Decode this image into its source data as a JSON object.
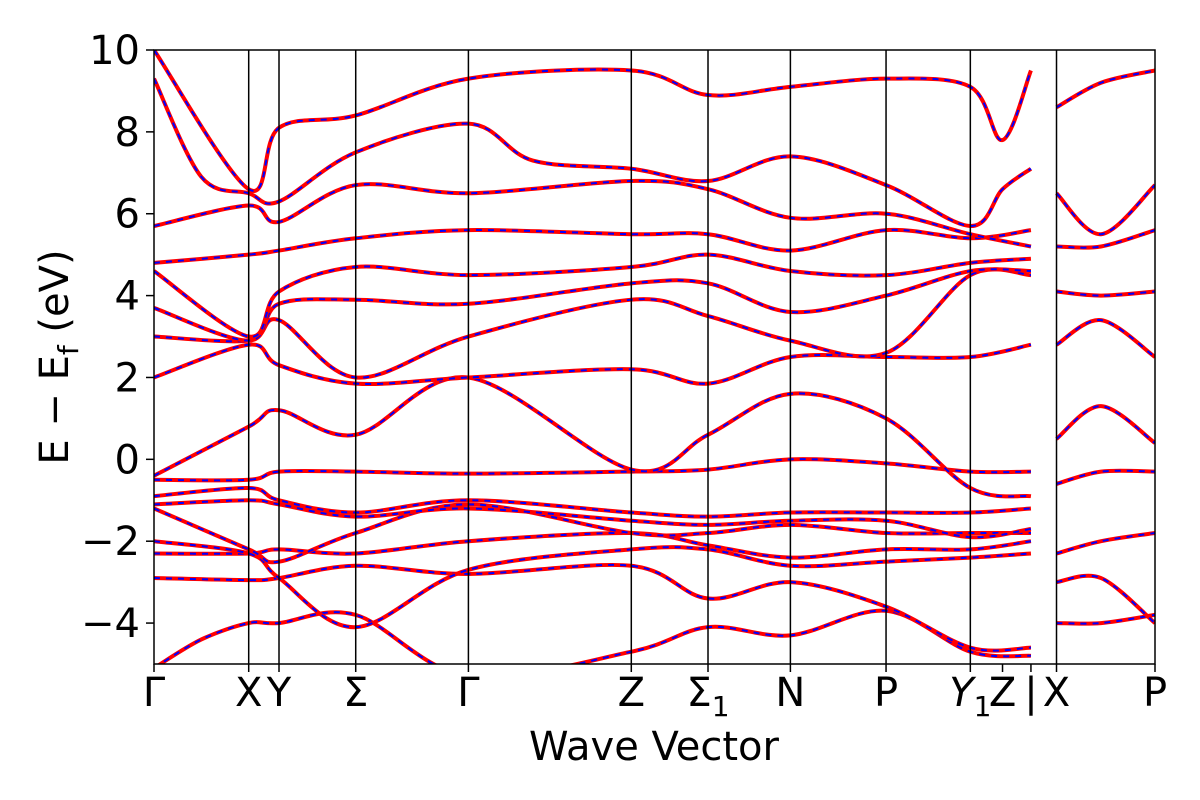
{
  "chart_data": {
    "type": "line",
    "title": "",
    "xlabel": "Wave Vector",
    "ylabel_main": "E − E",
    "ylabel_sub": "f",
    "ylabel_unit": " (eV)",
    "ylim": [
      -5,
      10
    ],
    "yticks": [
      {
        "value": -4,
        "label": "−4"
      },
      {
        "value": -2,
        "label": "−2"
      },
      {
        "value": 0,
        "label": "0"
      },
      {
        "value": 2,
        "label": "2"
      },
      {
        "value": 4,
        "label": "4"
      },
      {
        "value": 6,
        "label": "6"
      },
      {
        "value": 8,
        "label": "8"
      },
      {
        "value": 10,
        "label": "10"
      }
    ],
    "xlim": [
      0,
      10.57
    ],
    "kpoints": [
      {
        "pos": 0.0,
        "main": "Γ",
        "sub": "",
        "italic": false
      },
      {
        "pos": 1.0,
        "main": "X",
        "sub": "",
        "italic": false
      },
      {
        "pos": 1.32,
        "main": "Y",
        "sub": "",
        "italic": false
      },
      {
        "pos": 2.13,
        "main": "Σ",
        "sub": "",
        "italic": false
      },
      {
        "pos": 3.32,
        "main": "Γ",
        "sub": "",
        "italic": false
      },
      {
        "pos": 5.04,
        "main": "Z",
        "sub": "",
        "italic": false
      },
      {
        "pos": 5.85,
        "main": "Σ",
        "sub": "1",
        "italic": false
      },
      {
        "pos": 6.72,
        "main": "N",
        "sub": "",
        "italic": false
      },
      {
        "pos": 7.73,
        "main": "P",
        "sub": "",
        "italic": false
      },
      {
        "pos": 8.62,
        "main": "Y",
        "sub": "1",
        "italic": true
      },
      {
        "pos": 8.96,
        "main": "Z",
        "sub": "",
        "italic": false
      },
      {
        "pos": 9.26,
        "main": "|",
        "sub": "",
        "italic": false
      },
      {
        "pos": 9.53,
        "main": "X",
        "sub": "",
        "italic": false
      },
      {
        "pos": 10.57,
        "main": "P",
        "sub": "",
        "italic": false
      }
    ],
    "vlines": [
      1.0,
      1.32,
      2.13,
      3.32,
      5.04,
      5.85,
      6.72,
      7.73,
      8.62,
      9.53
    ],
    "series_styles": [
      {
        "color": "#ff0000",
        "dashed": false
      },
      {
        "color": "#0000ff",
        "dashed": true
      }
    ],
    "bands": [
      [
        [
          0,
          -5.1
        ],
        [
          0.5,
          -4.4
        ],
        [
          1.0,
          -4.0
        ],
        [
          1.32,
          -4.0
        ],
        [
          2.13,
          -3.8
        ],
        [
          3.32,
          -5.3
        ],
        [
          5.04,
          -4.7
        ],
        [
          5.85,
          -4.1
        ],
        [
          6.72,
          -4.3
        ],
        [
          7.73,
          -3.7
        ],
        [
          8.62,
          -4.7
        ],
        [
          9.26,
          -4.8
        ]
      ],
      [
        [
          0,
          -2.9
        ],
        [
          1.0,
          -2.95
        ],
        [
          1.32,
          -2.9
        ],
        [
          2.13,
          -2.6
        ],
        [
          3.32,
          -2.8
        ],
        [
          5.04,
          -2.6
        ],
        [
          5.85,
          -3.4
        ],
        [
          6.72,
          -3.0
        ],
        [
          7.73,
          -3.6
        ],
        [
          8.62,
          -4.6
        ],
        [
          9.26,
          -4.6
        ]
      ],
      [
        [
          0,
          -2.3
        ],
        [
          1.0,
          -2.3
        ],
        [
          1.32,
          -2.2
        ],
        [
          2.13,
          -2.3
        ],
        [
          3.32,
          -2.0
        ],
        [
          5.04,
          -1.8
        ],
        [
          5.85,
          -2.1
        ],
        [
          6.72,
          -2.4
        ],
        [
          7.73,
          -2.2
        ],
        [
          8.62,
          -2.2
        ],
        [
          9.26,
          -2.0
        ]
      ],
      [
        [
          0,
          -2.0
        ],
        [
          1.0,
          -2.3
        ],
        [
          1.32,
          -2.9
        ],
        [
          2.13,
          -4.1
        ],
        [
          3.32,
          -2.7
        ],
        [
          5.04,
          -2.2
        ],
        [
          5.85,
          -2.2
        ],
        [
          6.72,
          -2.6
        ],
        [
          7.73,
          -2.5
        ],
        [
          8.62,
          -2.4
        ],
        [
          9.26,
          -2.3
        ]
      ],
      [
        [
          0,
          -1.2
        ],
        [
          1.0,
          -2.2
        ],
        [
          1.32,
          -2.5
        ],
        [
          2.13,
          -1.8
        ],
        [
          3.32,
          -1.1
        ],
        [
          5.04,
          -1.8
        ],
        [
          5.85,
          -1.8
        ],
        [
          6.72,
          -1.6
        ],
        [
          7.73,
          -1.8
        ],
        [
          8.62,
          -1.8
        ],
        [
          9.26,
          -1.8
        ]
      ],
      [
        [
          0,
          -1.1
        ],
        [
          1.0,
          -1.0
        ],
        [
          1.32,
          -1.1
        ],
        [
          2.13,
          -1.4
        ],
        [
          3.32,
          -1.2
        ],
        [
          5.04,
          -1.5
        ],
        [
          5.85,
          -1.6
        ],
        [
          6.72,
          -1.5
        ],
        [
          7.73,
          -1.5
        ],
        [
          8.62,
          -1.9
        ],
        [
          9.26,
          -1.7
        ]
      ],
      [
        [
          0,
          -0.9
        ],
        [
          1.0,
          -0.7
        ],
        [
          1.32,
          -1.0
        ],
        [
          2.13,
          -1.3
        ],
        [
          3.32,
          -1.0
        ],
        [
          5.04,
          -1.3
        ],
        [
          5.85,
          -1.4
        ],
        [
          6.72,
          -1.3
        ],
        [
          7.73,
          -1.3
        ],
        [
          8.62,
          -1.3
        ],
        [
          9.26,
          -1.2
        ]
      ],
      [
        [
          0,
          -0.5
        ],
        [
          1.0,
          -0.5
        ],
        [
          1.32,
          -0.3
        ],
        [
          2.13,
          -0.3
        ],
        [
          3.32,
          -0.35
        ],
        [
          5.04,
          -0.3
        ],
        [
          5.85,
          -0.25
        ],
        [
          6.72,
          0.0
        ],
        [
          7.73,
          -0.1
        ],
        [
          8.62,
          -0.3
        ],
        [
          9.26,
          -0.3
        ]
      ],
      [
        [
          0,
          -0.4
        ],
        [
          1.0,
          0.8
        ],
        [
          1.32,
          1.2
        ],
        [
          2.13,
          0.6
        ],
        [
          3.32,
          2.0
        ],
        [
          5.04,
          -0.25
        ],
        [
          5.85,
          0.6
        ],
        [
          6.72,
          1.6
        ],
        [
          7.73,
          1.0
        ],
        [
          8.62,
          -0.7
        ],
        [
          9.26,
          -0.9
        ]
      ],
      [
        [
          0,
          2.0
        ],
        [
          1.0,
          2.8
        ],
        [
          1.32,
          2.3
        ],
        [
          2.13,
          1.85
        ],
        [
          3.32,
          2.0
        ],
        [
          5.04,
          2.2
        ],
        [
          5.85,
          1.85
        ],
        [
          6.72,
          2.5
        ],
        [
          7.73,
          2.5
        ],
        [
          8.62,
          2.5
        ],
        [
          9.26,
          2.8
        ]
      ],
      [
        [
          0,
          3.0
        ],
        [
          1.0,
          2.9
        ],
        [
          1.32,
          3.4
        ],
        [
          2.13,
          2.0
        ],
        [
          3.32,
          3.0
        ],
        [
          5.04,
          3.9
        ],
        [
          5.85,
          3.5
        ],
        [
          6.72,
          2.9
        ],
        [
          7.73,
          2.6
        ],
        [
          8.62,
          4.5
        ],
        [
          9.26,
          4.5
        ]
      ],
      [
        [
          0,
          3.7
        ],
        [
          1.0,
          2.9
        ],
        [
          1.32,
          3.8
        ],
        [
          2.13,
          3.9
        ],
        [
          3.32,
          3.8
        ],
        [
          5.04,
          4.3
        ],
        [
          5.85,
          4.3
        ],
        [
          6.72,
          3.6
        ],
        [
          7.73,
          4.0
        ],
        [
          8.62,
          4.6
        ],
        [
          9.26,
          4.6
        ]
      ],
      [
        [
          0,
          4.6
        ],
        [
          1.0,
          3.0
        ],
        [
          1.32,
          4.1
        ],
        [
          2.13,
          4.7
        ],
        [
          3.32,
          4.5
        ],
        [
          5.04,
          4.7
        ],
        [
          5.85,
          5.0
        ],
        [
          6.72,
          4.6
        ],
        [
          7.73,
          4.5
        ],
        [
          8.62,
          4.8
        ],
        [
          9.26,
          4.9
        ]
      ],
      [
        [
          0,
          4.8
        ],
        [
          1.0,
          5.0
        ],
        [
          1.32,
          5.1
        ],
        [
          2.13,
          5.4
        ],
        [
          3.32,
          5.6
        ],
        [
          5.04,
          5.5
        ],
        [
          5.85,
          5.5
        ],
        [
          6.72,
          5.1
        ],
        [
          7.73,
          5.6
        ],
        [
          8.62,
          5.4
        ],
        [
          9.26,
          5.6
        ]
      ],
      [
        [
          0,
          5.7
        ],
        [
          1.0,
          6.2
        ],
        [
          1.32,
          5.8
        ],
        [
          2.13,
          6.7
        ],
        [
          3.32,
          6.5
        ],
        [
          5.04,
          6.8
        ],
        [
          5.85,
          6.6
        ],
        [
          6.72,
          5.9
        ],
        [
          7.73,
          6.0
        ],
        [
          8.62,
          5.5
        ],
        [
          9.26,
          5.2
        ]
      ],
      [
        [
          0,
          9.3
        ],
        [
          0.5,
          6.9
        ],
        [
          1.0,
          6.5
        ],
        [
          1.32,
          6.3
        ],
        [
          2.13,
          7.5
        ],
        [
          3.32,
          8.2
        ],
        [
          4.0,
          7.3
        ],
        [
          5.04,
          7.1
        ],
        [
          5.85,
          6.8
        ],
        [
          6.72,
          7.4
        ],
        [
          7.73,
          6.7
        ],
        [
          8.62,
          5.7
        ],
        [
          8.96,
          6.6
        ],
        [
          9.26,
          7.1
        ]
      ],
      [
        [
          0,
          10.0
        ],
        [
          1.0,
          6.6
        ],
        [
          1.32,
          8.1
        ],
        [
          2.13,
          8.4
        ],
        [
          3.32,
          9.3
        ],
        [
          5.04,
          9.5
        ],
        [
          5.85,
          8.9
        ],
        [
          6.72,
          9.1
        ],
        [
          7.73,
          9.3
        ],
        [
          8.62,
          9.1
        ],
        [
          8.96,
          7.8
        ],
        [
          9.26,
          9.5
        ]
      ],
      [
        [
          9.53,
          -4.0
        ],
        [
          10.0,
          -4.0
        ],
        [
          10.57,
          -3.8
        ]
      ],
      [
        [
          9.53,
          -3.0
        ],
        [
          10.0,
          -2.9
        ],
        [
          10.57,
          -4.0
        ]
      ],
      [
        [
          9.53,
          -2.3
        ],
        [
          10.0,
          -2.0
        ],
        [
          10.57,
          -1.8
        ]
      ],
      [
        [
          9.53,
          -0.6
        ],
        [
          10.0,
          -0.3
        ],
        [
          10.57,
          -0.3
        ]
      ],
      [
        [
          9.53,
          0.5
        ],
        [
          10.0,
          1.3
        ],
        [
          10.57,
          0.4
        ]
      ],
      [
        [
          9.53,
          2.8
        ],
        [
          10.0,
          3.4
        ],
        [
          10.57,
          2.5
        ]
      ],
      [
        [
          9.53,
          4.1
        ],
        [
          10.0,
          4.0
        ],
        [
          10.57,
          4.1
        ]
      ],
      [
        [
          9.53,
          5.2
        ],
        [
          10.0,
          5.2
        ],
        [
          10.57,
          5.6
        ]
      ],
      [
        [
          9.53,
          6.5
        ],
        [
          10.0,
          5.5
        ],
        [
          10.57,
          6.7
        ]
      ],
      [
        [
          9.53,
          8.6
        ],
        [
          10.0,
          9.2
        ],
        [
          10.57,
          9.5
        ]
      ]
    ]
  }
}
